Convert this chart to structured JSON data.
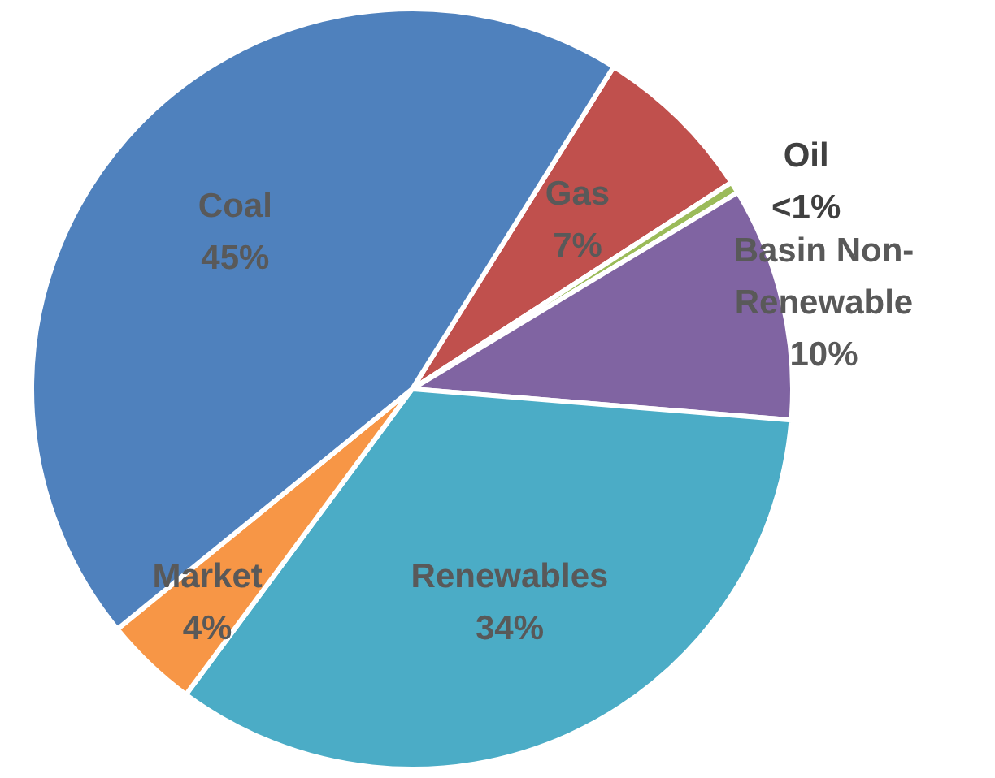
{
  "chart_data": {
    "type": "pie",
    "categories": [
      "Gas",
      "Oil",
      "Basin Non-Renewable",
      "Renewables",
      "Market",
      "Coal"
    ],
    "values": [
      7,
      0.5,
      10,
      34,
      4,
      45
    ],
    "value_labels": [
      "7%",
      "<1%",
      "10%",
      "34%",
      "4%",
      "45%"
    ],
    "colors": [
      "#c0504d",
      "#9bbb59",
      "#8064a2",
      "#4bacc6",
      "#f79646",
      "#4f81bd"
    ],
    "legend": false
  }
}
